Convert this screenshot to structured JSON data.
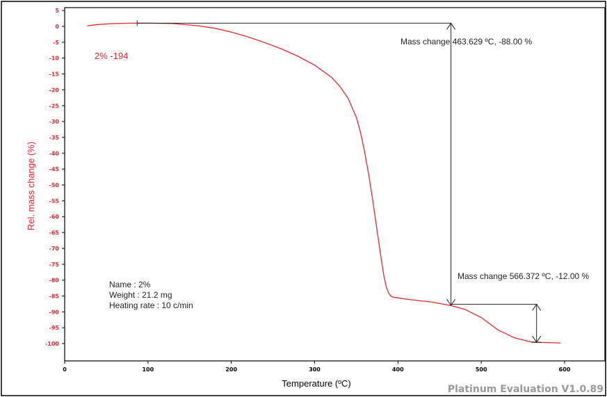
{
  "chart_data": {
    "type": "line",
    "xlabel": "Temperature (ºC)",
    "ylabel": "Rel. mass change (%)",
    "xlim": [
      0,
      640
    ],
    "ylim": [
      -104,
      5
    ],
    "x_ticks": [
      0,
      100,
      200,
      300,
      400,
      500,
      600
    ],
    "y_ticks": [
      5,
      0,
      -5,
      -10,
      -15,
      -20,
      -25,
      -30,
      -35,
      -40,
      -45,
      -50,
      -55,
      -60,
      -65,
      -70,
      -75,
      -80,
      -85,
      -90,
      -95,
      -100
    ],
    "grid": false,
    "series": [
      {
        "name": "2% -194",
        "color": "#e8242b",
        "x": [
          27,
          40,
          60,
          80,
          100,
          130,
          160,
          180,
          200,
          220,
          240,
          260,
          280,
          300,
          320,
          330,
          340,
          350,
          355,
          360,
          365,
          370,
          375,
          380,
          383,
          386,
          389,
          392,
          395,
          400,
          405,
          410,
          420,
          440,
          463.6,
          480,
          500,
          520,
          540,
          560,
          566.4,
          580,
          595
        ],
        "y": [
          0.2,
          0.6,
          0.9,
          1.0,
          1.0,
          0.9,
          0.2,
          -0.6,
          -1.8,
          -3.3,
          -5.1,
          -7.1,
          -9.4,
          -12.2,
          -16.0,
          -18.8,
          -22.6,
          -28.6,
          -33.3,
          -39.5,
          -46.9,
          -55.3,
          -64.5,
          -73.5,
          -78.5,
          -82.2,
          -84.2,
          -85.1,
          -85.4,
          -85.6,
          -85.8,
          -86.0,
          -86.3,
          -86.9,
          -88.0,
          -89.2,
          -91.8,
          -95.7,
          -98.2,
          -99.5,
          -99.6,
          -99.7,
          -99.8
        ]
      }
    ],
    "annotations": [
      {
        "label": "Mass change 463.629 ºC,  -88.00 %",
        "x": 463.629,
        "y_from": 1.0,
        "y_to": -88.0,
        "x_start": 87
      },
      {
        "label": "Mass change 566.372 ºC,  -12.00 %",
        "x": 566.372,
        "y_from": -87.6,
        "y_to": -99.6,
        "x_start": 463.629
      }
    ],
    "info": [
      "Name : 2%",
      "Weight :  21.2 mg",
      "Heating rate : 10 c/min"
    ]
  },
  "watermark": "Platinum Evaluation V1.0.89"
}
